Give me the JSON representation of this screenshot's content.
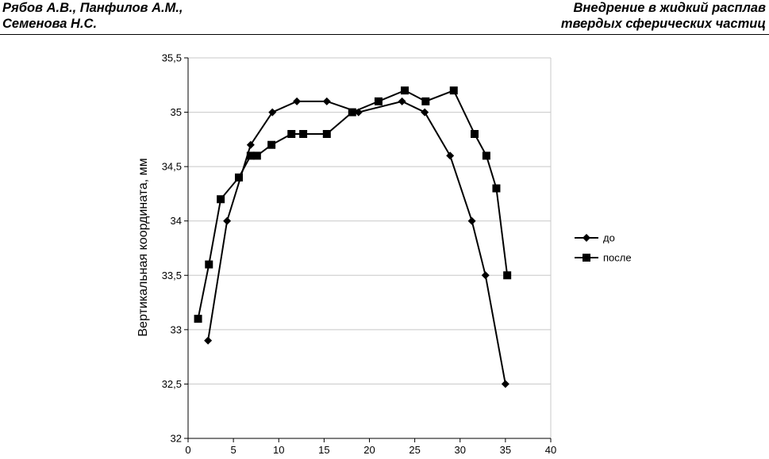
{
  "header": {
    "left_line1": "Рябов А.В., Панфилов А.М.,",
    "left_line2": "Семенова Н.С.",
    "right_line1": "Внедрение в жидкий расплав",
    "right_line2": "твердых сферических частиц"
  },
  "chart_data": {
    "type": "line",
    "title": "",
    "xlabel": "",
    "ylabel": "Вертикальная координата, мм",
    "xlim": [
      0,
      40
    ],
    "ylim": [
      32,
      35.5
    ],
    "x_ticks": [
      0,
      5,
      10,
      15,
      20,
      25,
      30,
      35,
      40
    ],
    "x_tick_labels": [
      "0",
      "5",
      "10",
      "15",
      "20",
      "25",
      "30",
      "35",
      "40"
    ],
    "y_ticks": [
      32,
      32.5,
      33,
      33.5,
      34,
      34.5,
      35,
      35.5
    ],
    "y_tick_labels": [
      "32",
      "32,5",
      "33",
      "33,5",
      "34",
      "34,5",
      "35",
      "35,5"
    ],
    "grid": "horizontal",
    "legend_position": "right",
    "series": [
      {
        "name": "до",
        "marker": "diamond",
        "color": "#000000",
        "x": [
          2.2,
          4.3,
          6.9,
          9.3,
          12.0,
          15.3,
          18.8,
          23.6,
          26.1,
          28.9,
          31.3,
          32.8,
          35.0
        ],
        "y": [
          32.9,
          34.0,
          34.7,
          35.0,
          35.1,
          35.1,
          35.0,
          35.1,
          35.0,
          34.6,
          34.0,
          33.5,
          32.5
        ]
      },
      {
        "name": "после",
        "marker": "square",
        "color": "#000000",
        "x": [
          1.1,
          2.3,
          3.6,
          5.6,
          6.9,
          7.6,
          9.2,
          11.4,
          12.7,
          15.3,
          18.1,
          21.0,
          23.9,
          26.2,
          29.3,
          31.6,
          32.9,
          34.0,
          35.2
        ],
        "y": [
          33.1,
          33.6,
          34.2,
          34.4,
          34.6,
          34.6,
          34.7,
          34.8,
          34.8,
          34.8,
          35.0,
          35.1,
          35.2,
          35.1,
          35.2,
          34.8,
          34.6,
          34.3,
          33.5
        ]
      }
    ]
  }
}
